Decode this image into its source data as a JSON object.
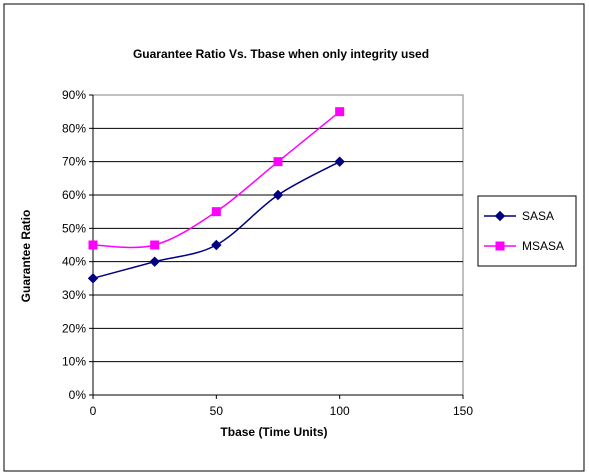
{
  "chart_data": {
    "type": "line",
    "title": "Guarantee Ratio Vs. Tbase when only integrity used",
    "xlabel": "Tbase (Time Units)",
    "ylabel": "Guarantee  Ratio",
    "xlim": [
      0,
      150
    ],
    "ylim": [
      0,
      90
    ],
    "x_ticks": [
      0,
      50,
      100,
      150
    ],
    "x_tick_labels": [
      "0",
      "50",
      "100",
      "150"
    ],
    "y_ticks": [
      0,
      10,
      20,
      30,
      40,
      50,
      60,
      70,
      80,
      90
    ],
    "y_tick_labels": [
      "0%",
      "10%",
      "20%",
      "30%",
      "40%",
      "50%",
      "60%",
      "70%",
      "80%",
      "90%"
    ],
    "grid": "horizontal",
    "legend_position": "right",
    "x": [
      0,
      25,
      50,
      75,
      100
    ],
    "series": [
      {
        "name": "SASA",
        "values": [
          35,
          40,
          45,
          60,
          70
        ],
        "color": "#000080",
        "marker": "diamond"
      },
      {
        "name": "MSASA",
        "values": [
          45,
          45,
          55,
          70,
          85
        ],
        "color": "#ff00ff",
        "marker": "square"
      }
    ],
    "plot_area_color": "#ffffff",
    "frame_color": "#000000"
  }
}
